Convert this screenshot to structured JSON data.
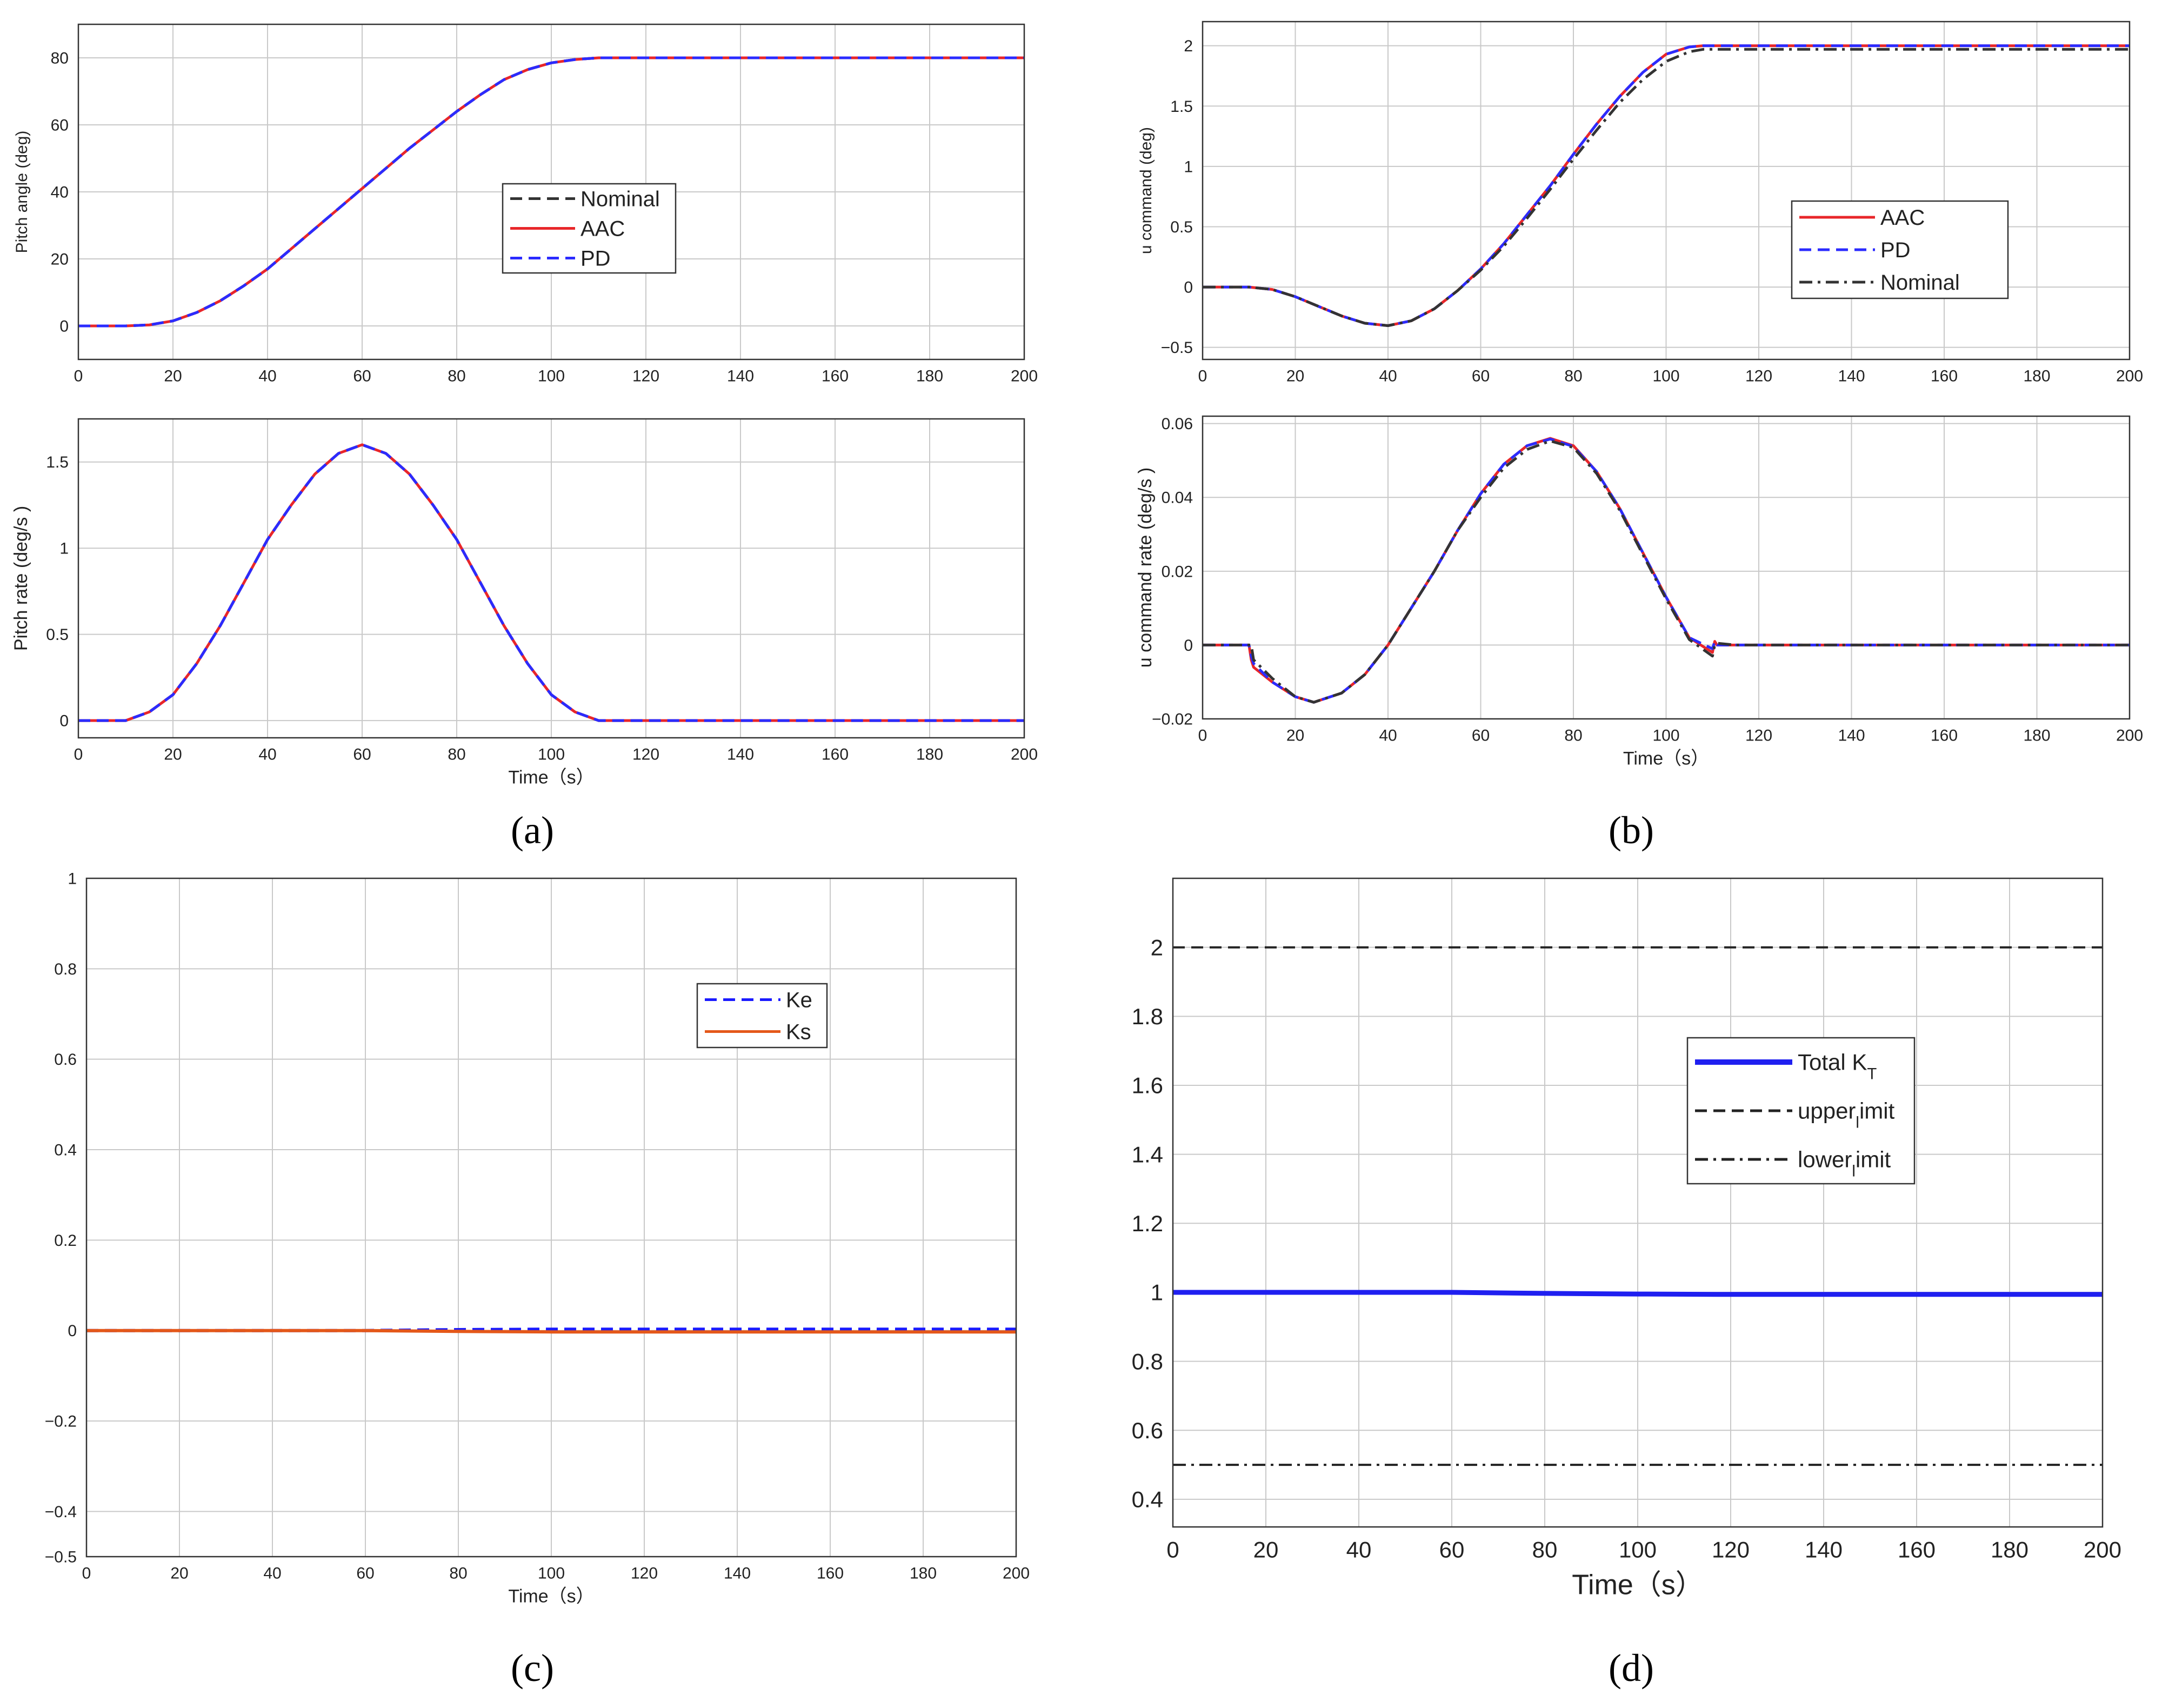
{
  "figure": {
    "captions": [
      "(a)",
      "(b)",
      "(c)",
      "(d)"
    ]
  },
  "chart_data": [
    {
      "id": "a_top",
      "type": "line",
      "xlabel": "",
      "ylabel": "Pitch angle (deg)",
      "xlim": [
        0,
        200
      ],
      "ylim": [
        -10,
        90
      ],
      "xticks": [
        0,
        20,
        40,
        60,
        80,
        100,
        120,
        140,
        160,
        180,
        200
      ],
      "yticks": [
        0,
        20,
        40,
        60,
        80
      ],
      "ytick_labels": [
        "0",
        "20",
        "40",
        "60",
        "80"
      ],
      "grid": true,
      "legend_position": "center-right",
      "series": [
        {
          "name": "Nominal",
          "color": "#333333",
          "dash": "dashed",
          "x": [
            0,
            10,
            15,
            20,
            25,
            30,
            35,
            40,
            45,
            50,
            55,
            60,
            65,
            70,
            75,
            80,
            85,
            90,
            95,
            100,
            105,
            110,
            200
          ],
          "y": [
            0,
            0,
            0.3,
            1.5,
            4,
            7.5,
            12,
            17,
            23,
            29,
            35,
            41,
            47,
            53,
            58.5,
            64,
            69,
            73.5,
            76.5,
            78.5,
            79.5,
            80,
            80
          ]
        },
        {
          "name": "AAC",
          "color": "#e8262a",
          "dash": "solid",
          "x": [
            0,
            10,
            15,
            20,
            25,
            30,
            35,
            40,
            45,
            50,
            55,
            60,
            65,
            70,
            75,
            80,
            85,
            90,
            95,
            100,
            105,
            110,
            200
          ],
          "y": [
            0,
            0,
            0.3,
            1.5,
            4,
            7.5,
            12,
            17,
            23,
            29,
            35,
            41,
            47,
            53,
            58.5,
            64,
            69,
            73.5,
            76.5,
            78.5,
            79.5,
            80,
            80
          ]
        },
        {
          "name": "PD",
          "color": "#2b2bff",
          "dash": "dashed",
          "x": [
            0,
            10,
            15,
            20,
            25,
            30,
            35,
            40,
            45,
            50,
            55,
            60,
            65,
            70,
            75,
            80,
            85,
            90,
            95,
            100,
            105,
            110,
            200
          ],
          "y": [
            0,
            0,
            0.3,
            1.5,
            4,
            7.5,
            12,
            17,
            23,
            29,
            35,
            41,
            47,
            53,
            58.5,
            64,
            69,
            73.5,
            76.5,
            78.5,
            79.5,
            80,
            80
          ]
        }
      ]
    },
    {
      "id": "a_bottom",
      "type": "line",
      "xlabel": "Time（s）",
      "ylabel": "Pitch rate (deg/s      )",
      "xlim": [
        0,
        200
      ],
      "ylim": [
        -0.1,
        1.75
      ],
      "xticks": [
        0,
        20,
        40,
        60,
        80,
        100,
        120,
        140,
        160,
        180,
        200
      ],
      "yticks": [
        0,
        0.5,
        1,
        1.5
      ],
      "ytick_labels": [
        "0",
        "0.5",
        "1",
        "1.5"
      ],
      "grid": true,
      "series": [
        {
          "name": "Nominal",
          "color": "#333333",
          "dash": "dashed",
          "x": [
            0,
            10,
            15,
            20,
            25,
            30,
            35,
            40,
            45,
            50,
            55,
            60,
            65,
            70,
            75,
            80,
            85,
            90,
            95,
            100,
            105,
            110,
            200
          ],
          "y": [
            0,
            0,
            0.05,
            0.15,
            0.33,
            0.55,
            0.8,
            1.05,
            1.25,
            1.43,
            1.55,
            1.6,
            1.55,
            1.43,
            1.25,
            1.05,
            0.8,
            0.55,
            0.33,
            0.15,
            0.05,
            0,
            0
          ]
        },
        {
          "name": "AAC",
          "color": "#e8262a",
          "dash": "solid",
          "x": [
            0,
            10,
            15,
            20,
            25,
            30,
            35,
            40,
            45,
            50,
            55,
            60,
            65,
            70,
            75,
            80,
            85,
            90,
            95,
            100,
            105,
            110,
            200
          ],
          "y": [
            0,
            0,
            0.05,
            0.15,
            0.33,
            0.55,
            0.8,
            1.05,
            1.25,
            1.43,
            1.55,
            1.6,
            1.55,
            1.43,
            1.25,
            1.05,
            0.8,
            0.55,
            0.33,
            0.15,
            0.05,
            0,
            0
          ]
        },
        {
          "name": "PD",
          "color": "#2b2bff",
          "dash": "dashed",
          "x": [
            0,
            10,
            15,
            20,
            25,
            30,
            35,
            40,
            45,
            50,
            55,
            60,
            65,
            70,
            75,
            80,
            85,
            90,
            95,
            100,
            105,
            110,
            200
          ],
          "y": [
            0,
            0,
            0.05,
            0.15,
            0.33,
            0.55,
            0.8,
            1.05,
            1.25,
            1.43,
            1.55,
            1.6,
            1.55,
            1.43,
            1.25,
            1.05,
            0.8,
            0.55,
            0.33,
            0.15,
            0.05,
            0,
            0
          ]
        }
      ]
    },
    {
      "id": "b_top",
      "type": "line",
      "xlabel": "",
      "ylabel": "u command (deg)",
      "xlim": [
        0,
        200
      ],
      "ylim": [
        -0.6,
        2.2
      ],
      "xticks": [
        0,
        20,
        40,
        60,
        80,
        100,
        120,
        140,
        160,
        180,
        200
      ],
      "yticks": [
        -0.5,
        0,
        0.5,
        1,
        1.5,
        2
      ],
      "ytick_labels": [
        "−0.5",
        "0",
        "0.5",
        "1",
        "1.5",
        "2"
      ],
      "grid": true,
      "legend_position": "upper-right",
      "series": [
        {
          "name": "AAC",
          "color": "#e8262a",
          "dash": "solid",
          "x": [
            0,
            10,
            15,
            20,
            25,
            30,
            35,
            40,
            45,
            50,
            55,
            60,
            65,
            70,
            75,
            80,
            85,
            90,
            95,
            100,
            105,
            108,
            200
          ],
          "y": [
            0,
            0,
            -0.02,
            -0.08,
            -0.16,
            -0.24,
            -0.3,
            -0.32,
            -0.28,
            -0.18,
            -0.03,
            0.15,
            0.36,
            0.6,
            0.84,
            1.1,
            1.35,
            1.58,
            1.78,
            1.93,
            1.99,
            2.0,
            2.0
          ]
        },
        {
          "name": "PD",
          "color": "#2b2bff",
          "dash": "dashed",
          "x": [
            0,
            10,
            15,
            20,
            25,
            30,
            35,
            40,
            45,
            50,
            55,
            60,
            65,
            70,
            75,
            80,
            85,
            90,
            95,
            100,
            105,
            108,
            200
          ],
          "y": [
            0,
            0,
            -0.02,
            -0.08,
            -0.16,
            -0.24,
            -0.3,
            -0.32,
            -0.28,
            -0.18,
            -0.03,
            0.15,
            0.36,
            0.6,
            0.84,
            1.1,
            1.35,
            1.58,
            1.78,
            1.93,
            1.99,
            2.0,
            2.0
          ]
        },
        {
          "name": "Nominal",
          "color": "#333333",
          "dash": "dashdot",
          "x": [
            0,
            10,
            15,
            20,
            25,
            30,
            35,
            40,
            45,
            50,
            55,
            60,
            65,
            70,
            75,
            80,
            85,
            90,
            95,
            100,
            105,
            108,
            200
          ],
          "y": [
            0,
            0,
            -0.02,
            -0.08,
            -0.16,
            -0.24,
            -0.3,
            -0.32,
            -0.28,
            -0.18,
            -0.03,
            0.14,
            0.34,
            0.57,
            0.81,
            1.06,
            1.3,
            1.53,
            1.72,
            1.87,
            1.95,
            1.97,
            1.97
          ]
        }
      ]
    },
    {
      "id": "b_bottom",
      "type": "line",
      "xlabel": "Time（s）",
      "ylabel": "u command rate (deg/s      )",
      "xlim": [
        0,
        200
      ],
      "ylim": [
        -0.02,
        0.062
      ],
      "xticks": [
        0,
        20,
        40,
        60,
        80,
        100,
        120,
        140,
        160,
        180,
        200
      ],
      "yticks": [
        -0.02,
        0,
        0.02,
        0.04,
        0.06
      ],
      "ytick_labels": [
        "−0.02",
        "0",
        "0.02",
        "0.04",
        "0.06"
      ],
      "grid": true,
      "series": [
        {
          "name": "AAC",
          "color": "#e8262a",
          "dash": "solid",
          "x": [
            0,
            10,
            10.5,
            11,
            15,
            20,
            24,
            30,
            35,
            40,
            45,
            50,
            55,
            60,
            65,
            70,
            75,
            80,
            85,
            90,
            95,
            100,
            105,
            110,
            110.5,
            111,
            115,
            200
          ],
          "y": [
            0,
            0,
            -0.004,
            -0.006,
            -0.01,
            -0.014,
            -0.0155,
            -0.013,
            -0.008,
            0,
            0.01,
            0.02,
            0.031,
            0.041,
            0.049,
            0.054,
            0.056,
            0.054,
            0.047,
            0.037,
            0.025,
            0.013,
            0.002,
            -0.002,
            0.001,
            0,
            0,
            0
          ]
        },
        {
          "name": "PD",
          "color": "#2b2bff",
          "dash": "dashed",
          "x": [
            0,
            10,
            10.5,
            11,
            15,
            20,
            24,
            30,
            35,
            40,
            45,
            50,
            55,
            60,
            65,
            70,
            75,
            80,
            85,
            90,
            95,
            100,
            105,
            110,
            110.5,
            111,
            115,
            200
          ],
          "y": [
            0,
            0,
            -0.003,
            -0.005,
            -0.01,
            -0.014,
            -0.0155,
            -0.013,
            -0.008,
            0,
            0.01,
            0.02,
            0.031,
            0.041,
            0.049,
            0.054,
            0.0558,
            0.0538,
            0.047,
            0.037,
            0.025,
            0.013,
            0.002,
            -0.001,
            0.001,
            0,
            0,
            0
          ]
        },
        {
          "name": "Nominal",
          "color": "#333333",
          "dash": "dashdot",
          "x": [
            0,
            10,
            10.5,
            11,
            15,
            20,
            24,
            30,
            35,
            40,
            45,
            50,
            55,
            60,
            65,
            70,
            75,
            80,
            85,
            90,
            95,
            100,
            105,
            110,
            110.5,
            111,
            115,
            200
          ],
          "y": [
            0,
            0,
            0,
            -0.004,
            -0.009,
            -0.014,
            -0.0155,
            -0.013,
            -0.008,
            0,
            0.01,
            0.02,
            0.031,
            0.04,
            0.048,
            0.053,
            0.0553,
            0.0535,
            0.0465,
            0.0365,
            0.0245,
            0.0125,
            0.0015,
            -0.003,
            0,
            0.0005,
            0,
            0
          ]
        }
      ]
    },
    {
      "id": "c",
      "type": "line",
      "xlabel": "Time（s）",
      "ylabel": "",
      "xlim": [
        0,
        200
      ],
      "ylim": [
        -0.5,
        1
      ],
      "xticks": [
        0,
        20,
        40,
        60,
        80,
        100,
        120,
        140,
        160,
        180,
        200
      ],
      "yticks": [
        -0.5,
        -0.4,
        -0.2,
        0,
        0.2,
        0.4,
        0.6,
        0.8,
        1
      ],
      "ytick_labels": [
        "−0.5",
        "−0.4",
        "−0.2",
        "0",
        "0.2",
        "0.4",
        "0.6",
        "0.8",
        "1"
      ],
      "grid": true,
      "legend_position": "upper-right",
      "series": [
        {
          "name": "Ke",
          "color": "#1a1aff",
          "dash": "dashed",
          "x": [
            0,
            60,
            80,
            100,
            200
          ],
          "y": [
            0,
            0,
            0.002,
            0.003,
            0.003
          ]
        },
        {
          "name": "Ks",
          "color": "#e4581a",
          "dash": "solid",
          "x": [
            0,
            60,
            80,
            100,
            200
          ],
          "y": [
            0,
            0,
            -0.002,
            -0.003,
            -0.003
          ]
        }
      ]
    },
    {
      "id": "d",
      "type": "line",
      "xlabel": "Time（s）",
      "ylabel": "",
      "xlim": [
        0,
        200
      ],
      "ylim": [
        0.32,
        2.2
      ],
      "xticks": [
        0,
        20,
        40,
        60,
        80,
        100,
        120,
        140,
        160,
        180,
        200
      ],
      "yticks": [
        0.4,
        0.6,
        0.8,
        1,
        1.2,
        1.4,
        1.6,
        1.8,
        2
      ],
      "ytick_labels": [
        "0.4",
        "0.6",
        "0.8",
        "1",
        "1.2",
        "1.4",
        "1.6",
        "1.8",
        "2"
      ],
      "grid": true,
      "legend_position": "upper-right",
      "series": [
        {
          "name": "Total K",
          "name_sub": "T",
          "color": "#1f1ff0",
          "dash": "solid",
          "x": [
            0,
            60,
            80,
            100,
            120,
            200
          ],
          "y": [
            1.0,
            1.0,
            0.997,
            0.995,
            0.994,
            0.994
          ]
        },
        {
          "name": "upper",
          "name_sub": "l",
          "name_tail": "imit",
          "color": "#222222",
          "dash": "dashed",
          "x": [
            0,
            200
          ],
          "y": [
            2,
            2
          ]
        },
        {
          "name": "lower",
          "name_sub": "l",
          "name_tail": "imit",
          "color": "#222222",
          "dash": "dashdot",
          "x": [
            0,
            200
          ],
          "y": [
            0.5,
            0.5
          ]
        }
      ]
    }
  ]
}
